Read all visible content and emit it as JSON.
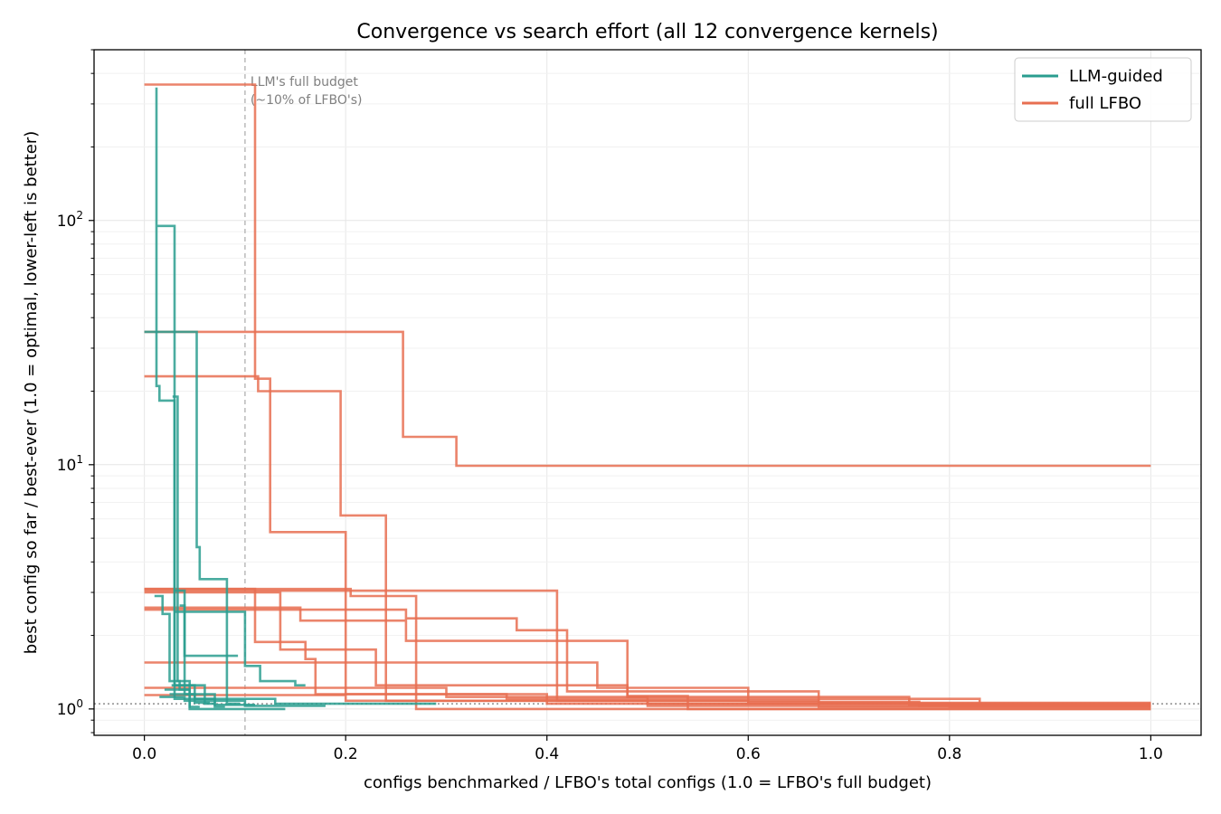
{
  "chart_data": {
    "type": "line",
    "title": "Convergence vs search effort (all 12 convergence kernels)",
    "xlabel": "configs benchmarked  /  LFBO's total configs   (1.0 = LFBO's full budget)",
    "ylabel": "best config so far  /  best-ever   (1.0 = optimal, lower-left is better)",
    "xlim": [
      -0.05,
      1.05
    ],
    "ylim": [
      0.78,
      500
    ],
    "yscale": "log",
    "grid": true,
    "legend_position": "top-right",
    "x_ticks": [
      0.0,
      0.2,
      0.4,
      0.6,
      0.8,
      1.0
    ],
    "x_tick_labels": [
      "0.0",
      "0.2",
      "0.4",
      "0.6",
      "0.8",
      "1.0"
    ],
    "y_ticks": [
      1,
      10,
      100
    ],
    "y_tick_labels": [
      "10^0",
      "10^1",
      "10^2"
    ],
    "reference_vline": {
      "x": 0.1,
      "label": "LLM's full budget\n(~10% of LFBO's)"
    },
    "reference_hline": {
      "y": 1.05
    },
    "legend": [
      {
        "label": "LLM-guided",
        "color": "#2a9d8f"
      },
      {
        "label": "full LFBO",
        "color": "#e76f51"
      }
    ],
    "series": [
      {
        "group": "full LFBO",
        "steps": [
          [
            0.0,
            360
          ],
          [
            0.11,
            360
          ],
          [
            0.11,
            22.5
          ],
          [
            0.125,
            22.5
          ],
          [
            0.125,
            5.3
          ],
          [
            0.2,
            5.3
          ],
          [
            0.2,
            1.15
          ],
          [
            0.27,
            1.15
          ],
          [
            0.27,
            1.0
          ],
          [
            1.0,
            1.0
          ]
        ]
      },
      {
        "group": "full LFBO",
        "steps": [
          [
            0.0,
            35
          ],
          [
            0.257,
            35
          ],
          [
            0.257,
            13
          ],
          [
            0.31,
            13
          ],
          [
            0.31,
            9.9
          ],
          [
            1.0,
            9.9
          ]
        ]
      },
      {
        "group": "full LFBO",
        "steps": [
          [
            0.0,
            23
          ],
          [
            0.113,
            23
          ],
          [
            0.113,
            20
          ],
          [
            0.195,
            20
          ],
          [
            0.195,
            6.2
          ],
          [
            0.24,
            6.2
          ],
          [
            0.24,
            1.08
          ],
          [
            0.67,
            1.08
          ],
          [
            0.67,
            1.02
          ],
          [
            1.0,
            1.02
          ]
        ]
      },
      {
        "group": "full LFBO",
        "steps": [
          [
            0.0,
            3.1
          ],
          [
            0.205,
            3.1
          ],
          [
            0.205,
            2.9
          ],
          [
            0.27,
            2.9
          ],
          [
            0.27,
            1.15
          ],
          [
            0.36,
            1.15
          ],
          [
            0.36,
            1.1
          ],
          [
            0.83,
            1.1
          ],
          [
            0.83,
            1.03
          ],
          [
            1.0,
            1.03
          ]
        ]
      },
      {
        "group": "full LFBO",
        "steps": [
          [
            0.0,
            3.05
          ],
          [
            0.41,
            3.05
          ],
          [
            0.41,
            1.08
          ],
          [
            0.6,
            1.08
          ],
          [
            0.6,
            1.05
          ],
          [
            1.0,
            1.05
          ]
        ]
      },
      {
        "group": "full LFBO",
        "steps": [
          [
            0.0,
            2.6
          ],
          [
            0.155,
            2.6
          ],
          [
            0.155,
            2.3
          ],
          [
            0.26,
            2.3
          ],
          [
            0.26,
            1.9
          ],
          [
            0.48,
            1.9
          ],
          [
            0.48,
            1.12
          ],
          [
            0.76,
            1.12
          ],
          [
            0.76,
            1.04
          ],
          [
            1.0,
            1.04
          ]
        ]
      },
      {
        "group": "full LFBO",
        "steps": [
          [
            0.0,
            3.0
          ],
          [
            0.135,
            3.0
          ],
          [
            0.135,
            1.75
          ],
          [
            0.23,
            1.75
          ],
          [
            0.23,
            1.25
          ],
          [
            0.48,
            1.25
          ],
          [
            0.48,
            1.13
          ],
          [
            0.54,
            1.13
          ],
          [
            0.54,
            1.0
          ],
          [
            1.0,
            1.0
          ]
        ]
      },
      {
        "group": "full LFBO",
        "steps": [
          [
            0.0,
            3.1
          ],
          [
            0.11,
            3.1
          ],
          [
            0.11,
            1.88
          ],
          [
            0.16,
            1.88
          ],
          [
            0.16,
            1.6
          ],
          [
            0.17,
            1.6
          ],
          [
            0.17,
            1.15
          ],
          [
            0.4,
            1.15
          ],
          [
            0.4,
            1.05
          ],
          [
            1.0,
            1.05
          ]
        ]
      },
      {
        "group": "full LFBO",
        "steps": [
          [
            0.0,
            2.55
          ],
          [
            0.26,
            2.55
          ],
          [
            0.26,
            2.35
          ],
          [
            0.37,
            2.35
          ],
          [
            0.37,
            2.1
          ],
          [
            0.42,
            2.1
          ],
          [
            0.42,
            1.18
          ],
          [
            0.67,
            1.18
          ],
          [
            0.67,
            1.06
          ],
          [
            1.0,
            1.06
          ]
        ]
      },
      {
        "group": "full LFBO",
        "steps": [
          [
            0.0,
            1.55
          ],
          [
            0.45,
            1.55
          ],
          [
            0.45,
            1.22
          ],
          [
            0.6,
            1.22
          ],
          [
            0.6,
            1.07
          ],
          [
            0.77,
            1.07
          ],
          [
            0.77,
            1.03
          ],
          [
            1.0,
            1.03
          ]
        ]
      },
      {
        "group": "full LFBO",
        "steps": [
          [
            0.0,
            1.22
          ],
          [
            0.3,
            1.22
          ],
          [
            0.3,
            1.12
          ],
          [
            0.5,
            1.12
          ],
          [
            0.5,
            1.05
          ],
          [
            0.8,
            1.05
          ],
          [
            0.8,
            1.02
          ],
          [
            1.0,
            1.02
          ]
        ]
      },
      {
        "group": "full LFBO",
        "steps": [
          [
            0.0,
            1.14
          ],
          [
            0.2,
            1.14
          ],
          [
            0.2,
            1.08
          ],
          [
            0.5,
            1.08
          ],
          [
            0.5,
            1.03
          ],
          [
            1.0,
            1.03
          ]
        ]
      },
      {
        "group": "LLM-guided",
        "steps": [
          [
            0.012,
            350
          ],
          [
            0.012,
            21
          ],
          [
            0.015,
            21
          ],
          [
            0.015,
            18.3
          ],
          [
            0.03,
            18.3
          ],
          [
            0.03,
            1.1
          ],
          [
            0.07,
            1.1
          ],
          [
            0.07,
            1.02
          ],
          [
            0.08,
            1.02
          ]
        ]
      },
      {
        "group": "LLM-guided",
        "steps": [
          [
            0.013,
            95
          ],
          [
            0.03,
            95
          ],
          [
            0.03,
            1.25
          ],
          [
            0.06,
            1.25
          ],
          [
            0.06,
            1.05
          ],
          [
            0.07,
            1.05
          ]
        ]
      },
      {
        "group": "LLM-guided",
        "steps": [
          [
            0.0,
            35
          ],
          [
            0.052,
            35
          ],
          [
            0.052,
            4.6
          ],
          [
            0.055,
            4.6
          ],
          [
            0.055,
            3.4
          ],
          [
            0.082,
            3.4
          ],
          [
            0.082,
            1.05
          ],
          [
            0.095,
            1.05
          ]
        ]
      },
      {
        "group": "LLM-guided",
        "steps": [
          [
            0.028,
            19
          ],
          [
            0.033,
            19
          ],
          [
            0.033,
            1.3
          ],
          [
            0.035,
            1.3
          ],
          [
            0.035,
            1.2
          ],
          [
            0.045,
            1.2
          ]
        ]
      },
      {
        "group": "LLM-guided",
        "steps": [
          [
            0.01,
            2.9
          ],
          [
            0.018,
            2.9
          ],
          [
            0.018,
            2.45
          ],
          [
            0.025,
            2.45
          ],
          [
            0.025,
            1.3
          ],
          [
            0.045,
            1.3
          ],
          [
            0.045,
            1.02
          ],
          [
            0.055,
            1.02
          ]
        ]
      },
      {
        "group": "LLM-guided",
        "steps": [
          [
            0.03,
            3.05
          ],
          [
            0.04,
            3.05
          ],
          [
            0.04,
            1.15
          ],
          [
            0.05,
            1.15
          ],
          [
            0.05,
            1.06
          ],
          [
            0.065,
            1.06
          ]
        ]
      },
      {
        "group": "LLM-guided",
        "steps": [
          [
            0.035,
            2.65
          ],
          [
            0.04,
            2.65
          ],
          [
            0.04,
            1.65
          ],
          [
            0.093,
            1.65
          ]
        ]
      },
      {
        "group": "LLM-guided",
        "steps": [
          [
            0.03,
            2.5
          ],
          [
            0.1,
            2.5
          ],
          [
            0.1,
            1.5
          ],
          [
            0.115,
            1.5
          ],
          [
            0.115,
            1.3
          ],
          [
            0.15,
            1.3
          ],
          [
            0.15,
            1.25
          ],
          [
            0.16,
            1.25
          ]
        ]
      },
      {
        "group": "LLM-guided",
        "steps": [
          [
            0.027,
            1.25
          ],
          [
            0.05,
            1.25
          ],
          [
            0.05,
            1.1
          ],
          [
            0.13,
            1.1
          ],
          [
            0.13,
            1.05
          ],
          [
            0.29,
            1.05
          ]
        ]
      },
      {
        "group": "LLM-guided",
        "steps": [
          [
            0.015,
            1.12
          ],
          [
            0.04,
            1.12
          ],
          [
            0.04,
            1.08
          ],
          [
            0.1,
            1.08
          ],
          [
            0.1,
            1.03
          ],
          [
            0.18,
            1.03
          ]
        ]
      },
      {
        "group": "LLM-guided",
        "steps": [
          [
            0.02,
            1.2
          ],
          [
            0.045,
            1.2
          ],
          [
            0.045,
            1.0
          ],
          [
            0.14,
            1.0
          ]
        ]
      },
      {
        "group": "LLM-guided",
        "steps": [
          [
            0.025,
            1.15
          ],
          [
            0.07,
            1.15
          ],
          [
            0.07,
            1.04
          ],
          [
            0.11,
            1.04
          ]
        ]
      }
    ]
  }
}
